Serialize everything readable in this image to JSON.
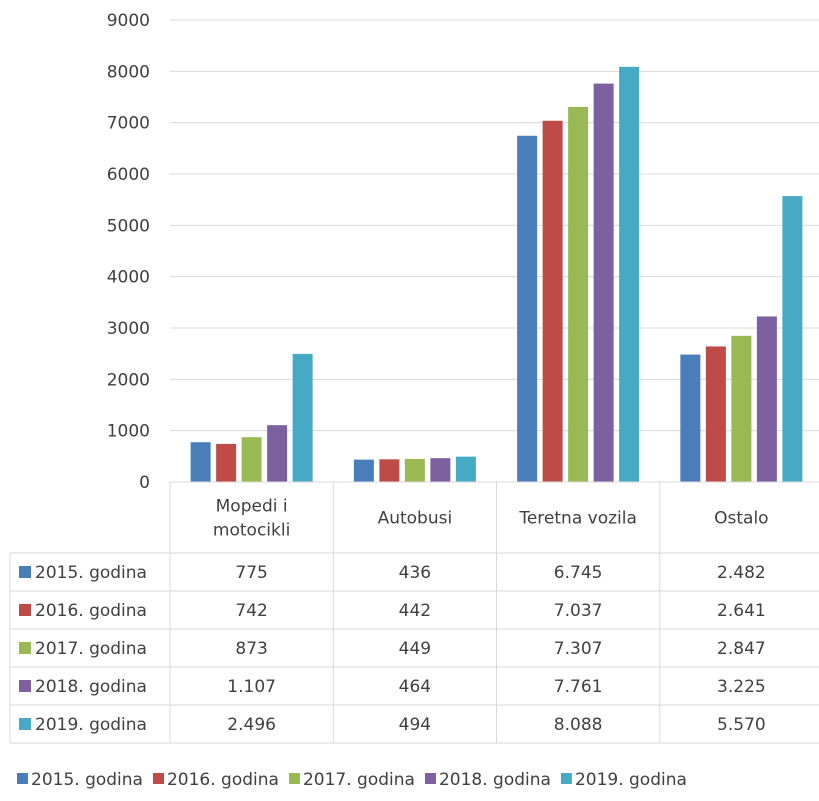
{
  "chart_data": {
    "type": "bar",
    "title": "",
    "xlabel": "",
    "ylabel": "",
    "ylim": [
      0,
      9000
    ],
    "yticks": [
      0,
      1000,
      2000,
      3000,
      4000,
      5000,
      6000,
      7000,
      8000,
      9000
    ],
    "grid": true,
    "legend_position": "bottom",
    "categories": [
      [
        "Mopedi i",
        "motocikli"
      ],
      [
        "Autobusi"
      ],
      [
        "Teretna vozila"
      ],
      [
        "Ostalo"
      ]
    ],
    "series": [
      {
        "name": "2015. godina",
        "color": "#4a7ebb",
        "values": [
          775,
          436,
          6745,
          2482
        ],
        "labels": [
          "775",
          "436",
          "6.745",
          "2.482"
        ]
      },
      {
        "name": "2016. godina",
        "color": "#be4b48",
        "values": [
          742,
          442,
          7037,
          2641
        ],
        "labels": [
          "742",
          "442",
          "7.037",
          "2.641"
        ]
      },
      {
        "name": "2017. godina",
        "color": "#98b954",
        "values": [
          873,
          449,
          7307,
          2847
        ],
        "labels": [
          "873",
          "449",
          "7.307",
          "2.847"
        ]
      },
      {
        "name": "2018. godina",
        "color": "#7d60a0",
        "values": [
          1107,
          464,
          7761,
          3225
        ],
        "labels": [
          "1.107",
          "464",
          "7.761",
          "3.225"
        ]
      },
      {
        "name": "2019. godina",
        "color": "#46aac5",
        "values": [
          2496,
          494,
          8088,
          5570
        ],
        "labels": [
          "2.496",
          "494",
          "8.088",
          "5.570"
        ]
      }
    ]
  }
}
